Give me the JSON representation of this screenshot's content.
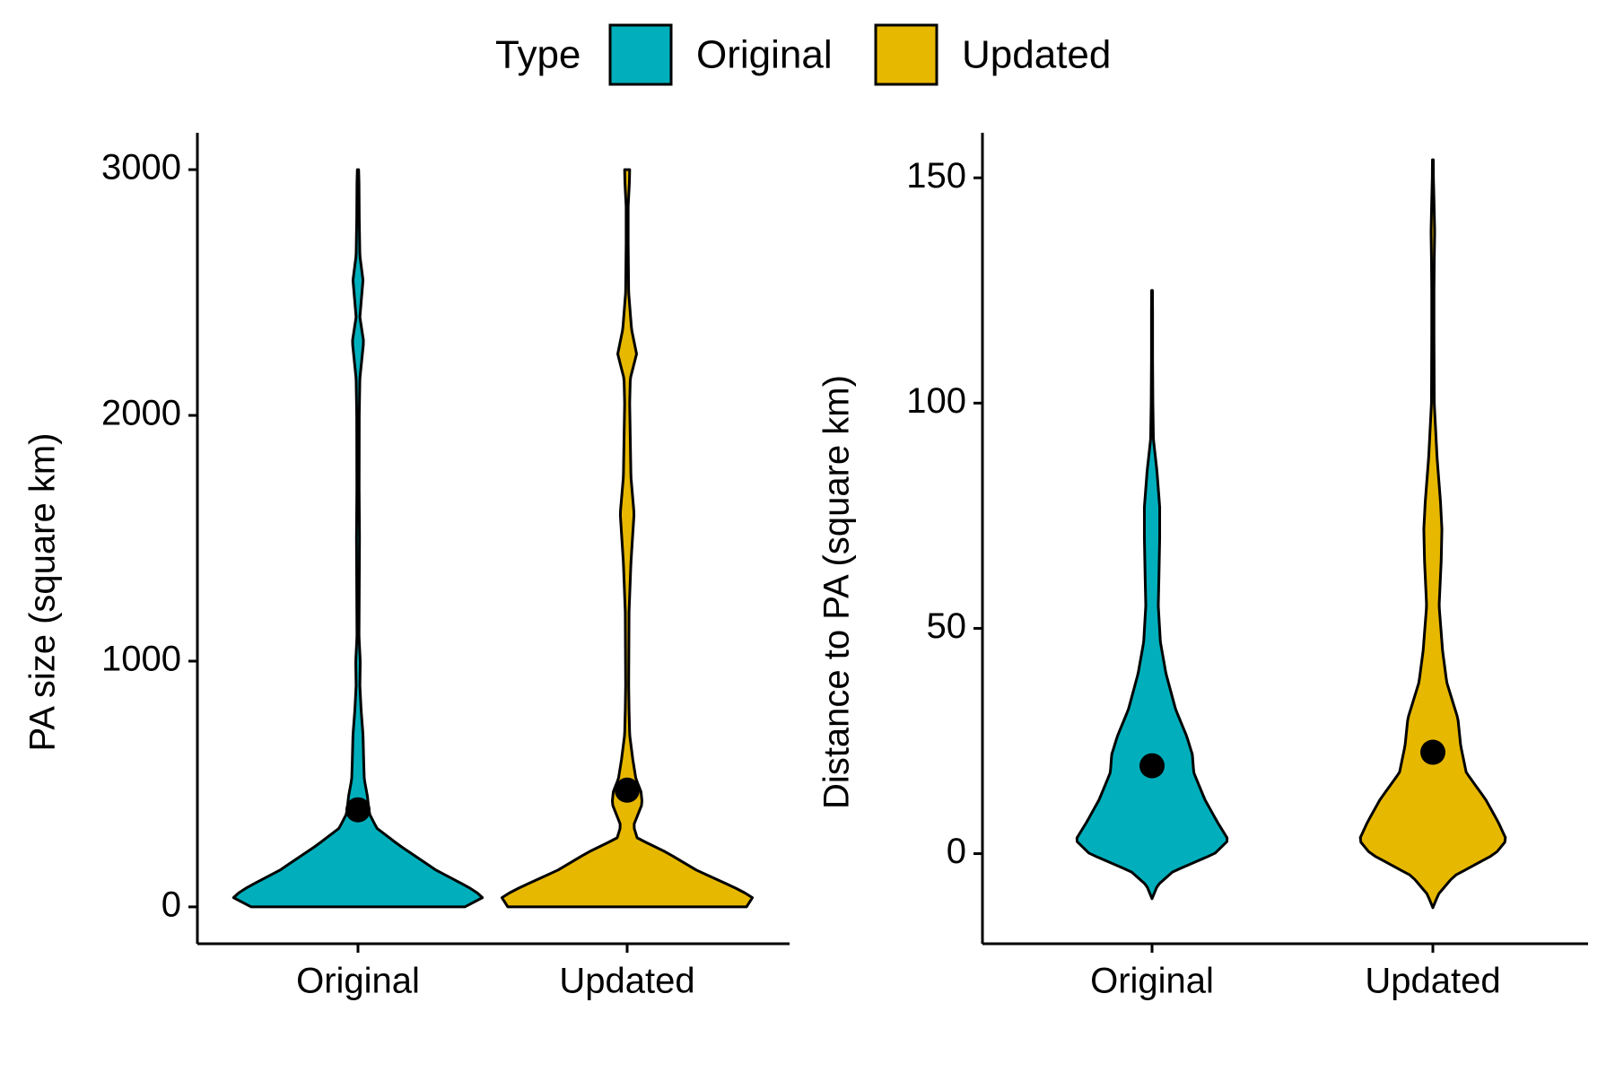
{
  "legend": {
    "title": "Type",
    "items": [
      {
        "label": "Original",
        "color": "#00AFBB"
      },
      {
        "label": "Updated",
        "color": "#E7B800"
      }
    ]
  },
  "chart_data": [
    {
      "type": "violin",
      "ylabel": "PA size (square km)",
      "xlabel": "",
      "categories": [
        "Original",
        "Updated"
      ],
      "ylim": [
        -150,
        3150
      ],
      "yticks": [
        0,
        1000,
        2000,
        3000
      ],
      "grid": false,
      "legend_position": "top",
      "series": [
        {
          "name": "Original",
          "color": "#00AFBB",
          "mean": 395,
          "min": 0,
          "max": 3000,
          "density": [
            [
              0,
              0.85
            ],
            [
              40,
              1.0
            ],
            [
              80,
              0.88
            ],
            [
              150,
              0.62
            ],
            [
              250,
              0.33
            ],
            [
              320,
              0.15
            ],
            [
              380,
              0.09
            ],
            [
              450,
              0.075
            ],
            [
              520,
              0.05
            ],
            [
              600,
              0.045
            ],
            [
              700,
              0.04
            ],
            [
              800,
              0.025
            ],
            [
              900,
              0.015
            ],
            [
              1000,
              0.018
            ],
            [
              1100,
              0.008
            ],
            [
              1300,
              0.01
            ],
            [
              1500,
              0.012
            ],
            [
              1700,
              0.009
            ],
            [
              2000,
              0.01
            ],
            [
              2150,
              0.015
            ],
            [
              2300,
              0.045
            ],
            [
              2400,
              0.015
            ],
            [
              2550,
              0.04
            ],
            [
              2650,
              0.015
            ],
            [
              2800,
              0.01
            ],
            [
              2950,
              0.008
            ],
            [
              3000,
              0.005
            ]
          ]
        },
        {
          "name": "Updated",
          "color": "#E7B800",
          "mean": 475,
          "min": 0,
          "max": 3000,
          "density": [
            [
              0,
              0.95
            ],
            [
              40,
              1.0
            ],
            [
              80,
              0.85
            ],
            [
              150,
              0.55
            ],
            [
              220,
              0.32
            ],
            [
              280,
              0.08
            ],
            [
              330,
              0.05
            ],
            [
              420,
              0.12
            ],
            [
              470,
              0.11
            ],
            [
              520,
              0.07
            ],
            [
              600,
              0.045
            ],
            [
              700,
              0.02
            ],
            [
              800,
              0.015
            ],
            [
              900,
              0.012
            ],
            [
              1000,
              0.013
            ],
            [
              1200,
              0.015
            ],
            [
              1400,
              0.03
            ],
            [
              1600,
              0.055
            ],
            [
              1750,
              0.03
            ],
            [
              1900,
              0.025
            ],
            [
              2050,
              0.02
            ],
            [
              2150,
              0.025
            ],
            [
              2250,
              0.075
            ],
            [
              2350,
              0.035
            ],
            [
              2500,
              0.012
            ],
            [
              2700,
              0.008
            ],
            [
              2850,
              0.008
            ],
            [
              2950,
              0.018
            ],
            [
              3000,
              0.02
            ]
          ]
        }
      ]
    },
    {
      "type": "violin",
      "ylabel": "Distance to PA (square km)",
      "xlabel": "",
      "categories": [
        "Original",
        "Updated"
      ],
      "ylim": [
        -20,
        160
      ],
      "yticks": [
        0,
        50,
        100,
        150
      ],
      "grid": false,
      "legend_position": "top",
      "series": [
        {
          "name": "Original",
          "color": "#00AFBB",
          "mean": 19.5,
          "min": -10,
          "max": 125,
          "density": [
            [
              -10,
              0.0
            ],
            [
              -7,
              0.04
            ],
            [
              -4,
              0.15
            ],
            [
              0,
              0.45
            ],
            [
              3,
              0.55
            ],
            [
              7,
              0.47
            ],
            [
              12,
              0.38
            ],
            [
              18,
              0.3
            ],
            [
              22,
              0.29
            ],
            [
              26,
              0.25
            ],
            [
              32,
              0.17
            ],
            [
              40,
              0.1
            ],
            [
              47,
              0.06
            ],
            [
              55,
              0.045
            ],
            [
              62,
              0.05
            ],
            [
              70,
              0.055
            ],
            [
              77,
              0.055
            ],
            [
              85,
              0.035
            ],
            [
              92,
              0.01
            ],
            [
              100,
              0.006
            ],
            [
              110,
              0.004
            ],
            [
              120,
              0.004
            ],
            [
              125,
              0.003
            ]
          ]
        },
        {
          "name": "Updated",
          "color": "#E7B800",
          "mean": 22.5,
          "min": -12,
          "max": 154,
          "density": [
            [
              -12,
              0.0
            ],
            [
              -9,
              0.04
            ],
            [
              -5,
              0.15
            ],
            [
              0,
              0.45
            ],
            [
              3,
              0.53
            ],
            [
              7,
              0.47
            ],
            [
              12,
              0.38
            ],
            [
              18,
              0.24
            ],
            [
              24,
              0.2
            ],
            [
              30,
              0.18
            ],
            [
              38,
              0.1
            ],
            [
              45,
              0.07
            ],
            [
              55,
              0.045
            ],
            [
              65,
              0.06
            ],
            [
              72,
              0.065
            ],
            [
              78,
              0.055
            ],
            [
              88,
              0.03
            ],
            [
              100,
              0.01
            ],
            [
              115,
              0.008
            ],
            [
              125,
              0.008
            ],
            [
              132,
              0.01
            ],
            [
              138,
              0.013
            ],
            [
              145,
              0.008
            ],
            [
              150,
              0.004
            ],
            [
              154,
              0.003
            ]
          ]
        }
      ]
    }
  ]
}
